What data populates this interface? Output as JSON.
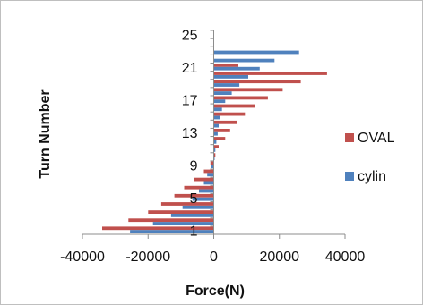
{
  "chart_data": {
    "type": "bar",
    "orientation": "horizontal",
    "title": "",
    "xlabel": "Force(N)",
    "ylabel": "Turn Number",
    "xlim": [
      -40000,
      40000
    ],
    "x_ticks": [
      "-40000",
      "-20000",
      "0",
      "20000",
      "40000"
    ],
    "y_tick_labels": [
      "1",
      "5",
      "9",
      "13",
      "17",
      "21",
      "25"
    ],
    "y_tick_turns": [
      1,
      5,
      9,
      13,
      17,
      21,
      25
    ],
    "categories": [
      1,
      2,
      3,
      4,
      5,
      6,
      7,
      8,
      9,
      10,
      11,
      12,
      13,
      14,
      15,
      16,
      17,
      18,
      19,
      20,
      21,
      22,
      23,
      24,
      25
    ],
    "series": [
      {
        "name": "OVAL",
        "color": "#c0504d",
        "values": [
          -34000,
          -26000,
          -20000,
          -16000,
          -12000,
          -9000,
          -6000,
          -3000,
          -1000,
          500,
          1500,
          3500,
          5000,
          7000,
          9500,
          12500,
          16500,
          21000,
          26500,
          34500,
          7500,
          0,
          0,
          0,
          0
        ]
      },
      {
        "name": "cylin",
        "color": "#4f81bd",
        "values": [
          -25500,
          -18500,
          -13000,
          -9500,
          -6500,
          -4500,
          -3000,
          -2000,
          -700,
          200,
          500,
          800,
          1200,
          1500,
          2000,
          2500,
          3500,
          5500,
          7800,
          10500,
          14000,
          18500,
          26000,
          0,
          0
        ]
      }
    ],
    "legend": [
      "OVAL",
      "cylin"
    ],
    "legend_position": "right",
    "grid": false
  }
}
